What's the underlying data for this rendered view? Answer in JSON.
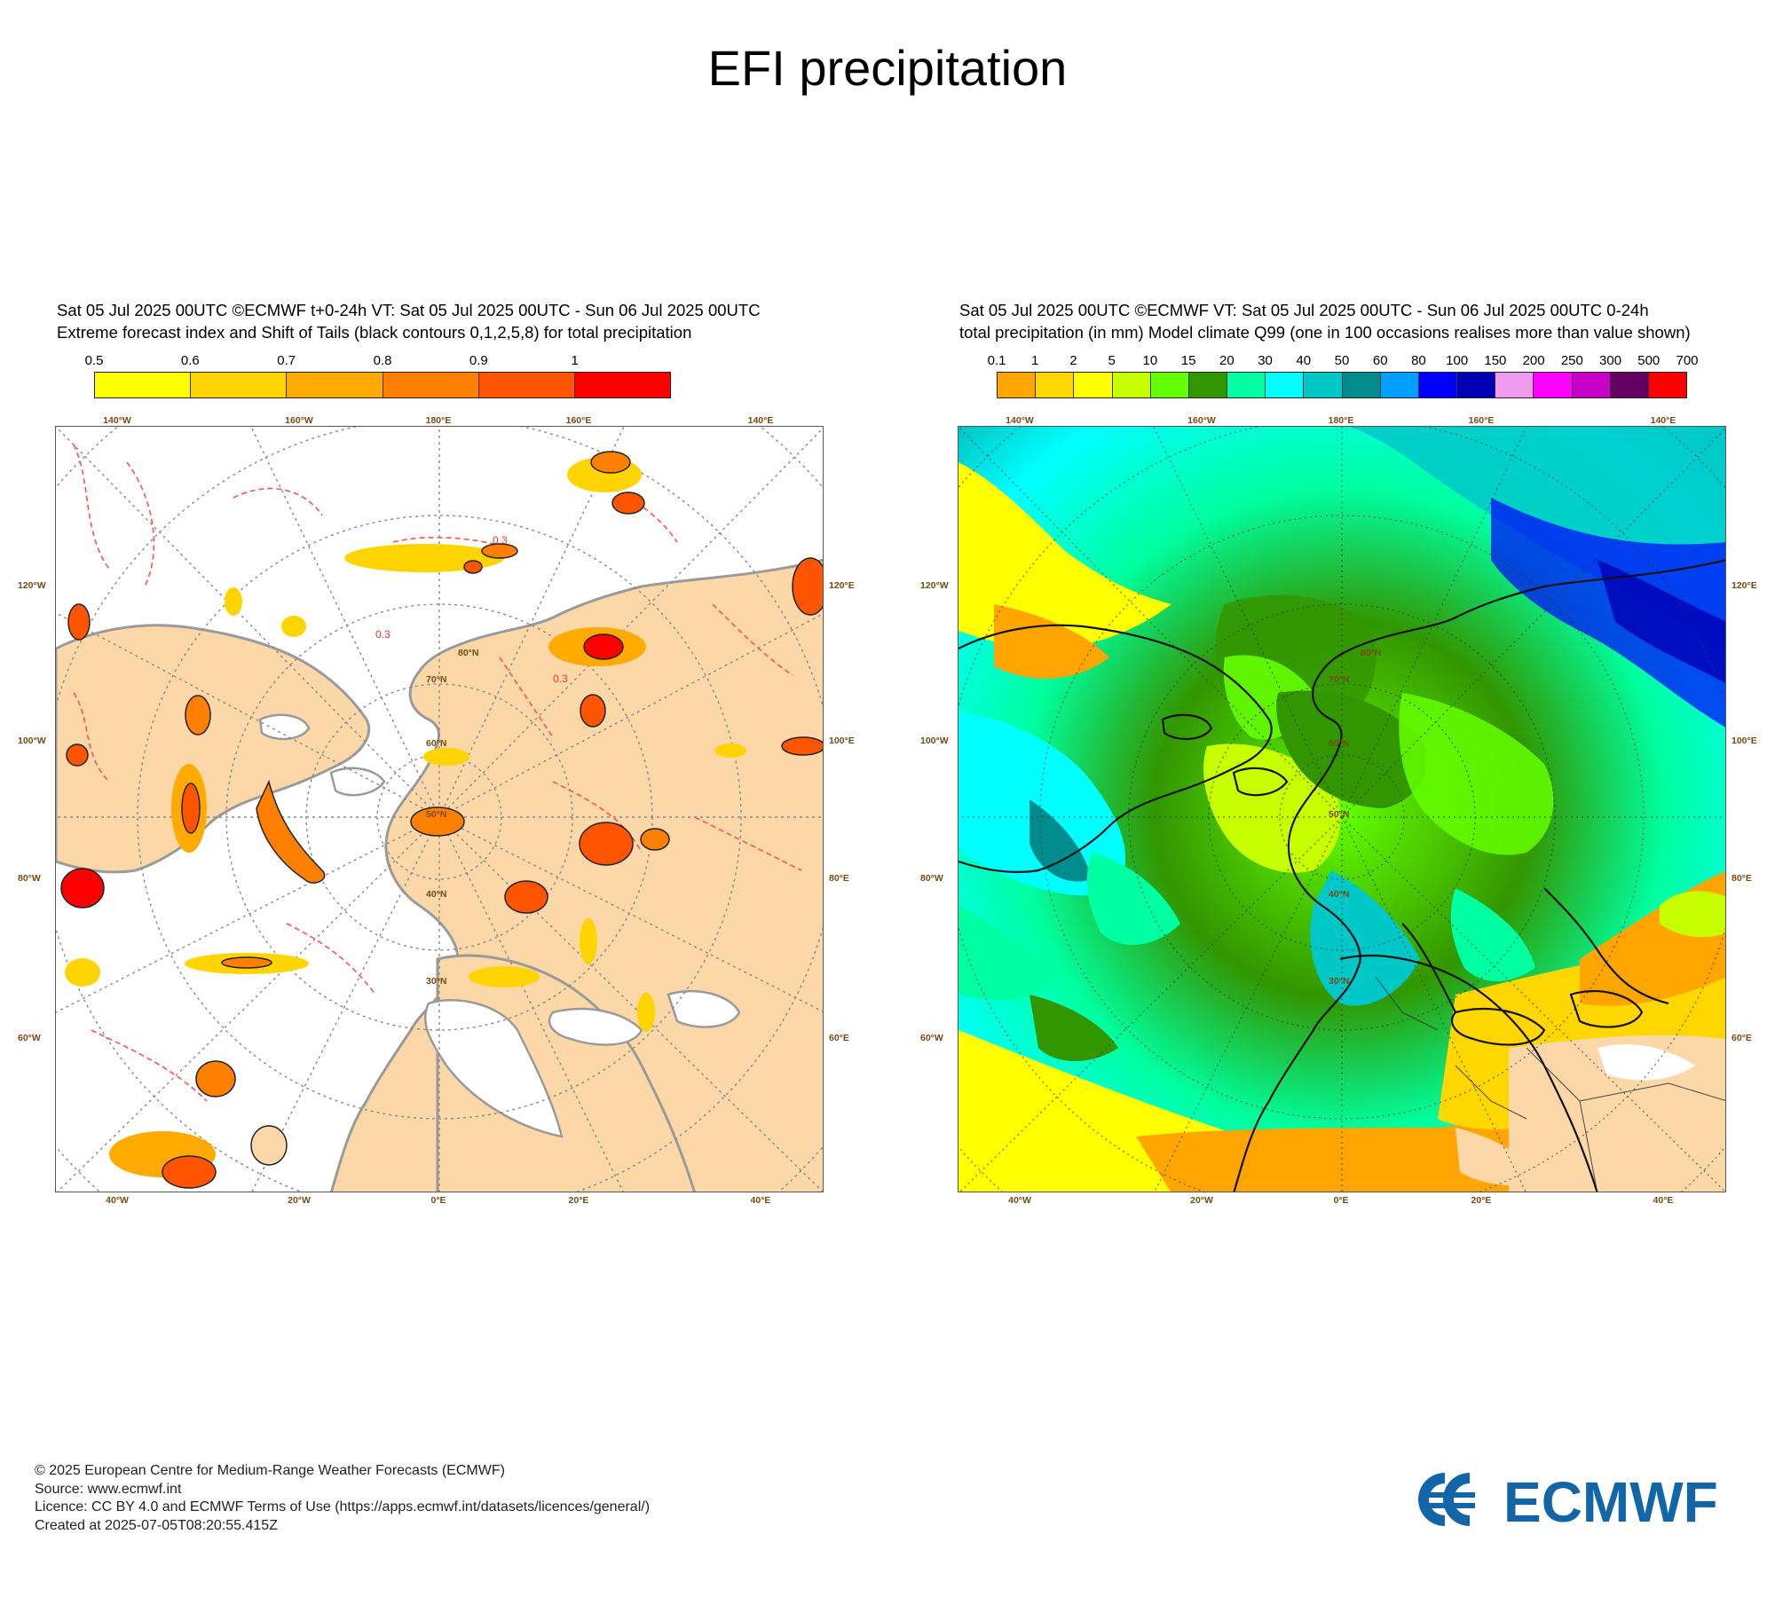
{
  "page_title": "EFI precipitation",
  "left_panel": {
    "title_line1": "Sat 05 Jul 2025 00UTC ©ECMWF t+0-24h  VT: Sat 05 Jul 2025 00UTC - Sun 06 Jul 2025 00UTC",
    "title_line2": "Extreme forecast index and Shift of Tails (black contours 0,1,2,5,8) for total precipitation",
    "colorbar": {
      "labels": [
        "0.5",
        "0.6",
        "0.7",
        "0.8",
        "0.9",
        "1"
      ],
      "colors": [
        "#ffff00",
        "#ffd400",
        "#ffaa00",
        "#ff7f00",
        "#ff5500",
        "#ff0000"
      ]
    },
    "contour_label": "0.3"
  },
  "right_panel": {
    "title_line1": "Sat 05 Jul 2025 00UTC ©ECMWF VT: Sat 05 Jul 2025 00UTC - Sun 06 Jul 2025 00UTC   0-24h",
    "title_line2": "total precipitation (in mm)  Model climate Q99 (one in 100 occasions realises more than value shown)",
    "colorbar": {
      "labels": [
        "0.1",
        "1",
        "2",
        "5",
        "10",
        "15",
        "20",
        "30",
        "40",
        "50",
        "60",
        "80",
        "100",
        "150",
        "200",
        "250",
        "300",
        "500",
        "700"
      ],
      "colors": [
        "#ffa500",
        "#ffd700",
        "#ffff00",
        "#c8ff00",
        "#64ff00",
        "#329600",
        "#00ffa0",
        "#00ffff",
        "#00c8c8",
        "#008c8c",
        "#00a0ff",
        "#0000ff",
        "#0000b4",
        "#ee9aee",
        "#ff00ff",
        "#c800c8",
        "#640064",
        "#ff0000"
      ]
    }
  },
  "map_labels": {
    "lon_top": [
      "140°W",
      "160°W",
      "180°E",
      "160°E",
      "140°E"
    ],
    "lon_bottom": [
      "40°W",
      "20°W",
      "0°E",
      "20°E",
      "40°E"
    ],
    "lat_left": [
      "120°W",
      "100°W",
      "80°W",
      "60°W"
    ],
    "lat_right": [
      "120°E",
      "100°E",
      "80°E",
      "60°E"
    ],
    "lat_circles": [
      "30°N",
      "40°N",
      "50°N",
      "60°N",
      "70°N",
      "80°N"
    ]
  },
  "colors": {
    "land": "#fcd8a8",
    "coast": "#9a9a9a",
    "grid": "#8a8a8a",
    "efi_dashed": "#ff5050"
  },
  "footer": {
    "line1": "© 2025 European Centre for Medium-Range Weather Forecasts (ECMWF)",
    "line2": "Source: www.ecmwf.int",
    "line3": "Licence: CC BY 4.0 and ECMWF Terms of Use (https://apps.ecmwf.int/datasets/licences/general/)",
    "line4": "Created at 2025-07-05T08:20:55.415Z"
  },
  "logo": {
    "text": "ECMWF",
    "color": "#1266a8"
  }
}
